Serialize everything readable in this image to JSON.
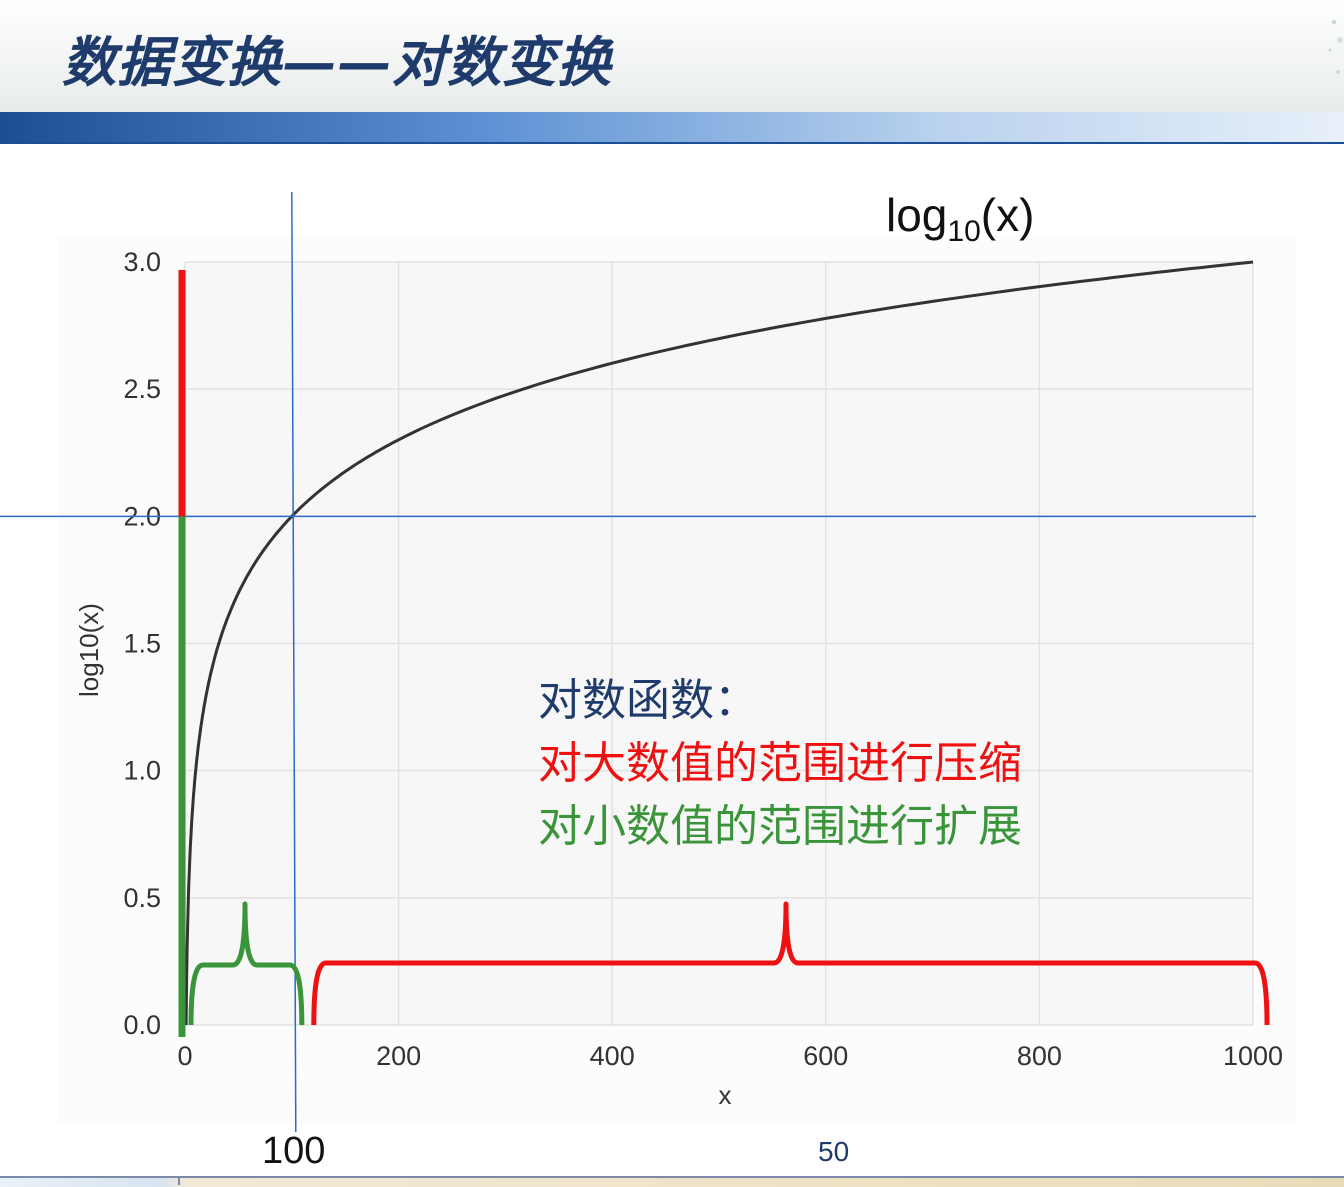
{
  "slide": {
    "title": "数据变换——对数变换",
    "function_label": {
      "base": "log",
      "subscript": "10",
      "arg": "(x)"
    },
    "annotation_title": "对数函数：",
    "annotation_compress": "对大数值的范围进行压缩",
    "annotation_expand": "对小数值的范围进行扩展",
    "marker_label": "100",
    "page_number": "50"
  },
  "colors": {
    "title": "#1f3b6b",
    "compress_red": "#ee1111",
    "expand_green": "#3a943a",
    "guide_blue": "#2a6ac8",
    "curve": "#333333"
  },
  "chart_data": {
    "type": "line",
    "xlabel": "x",
    "ylabel": "log10(x)",
    "xlim": [
      0,
      1000
    ],
    "ylim": [
      0,
      3.0
    ],
    "x_ticks": [
      0,
      200,
      400,
      600,
      800,
      1000
    ],
    "y_ticks": [
      0.0,
      0.5,
      1.0,
      1.5,
      2.0,
      2.5,
      3.0
    ],
    "x_tick_labels": [
      "0",
      "200",
      "400",
      "600",
      "800",
      "1000"
    ],
    "y_tick_labels": [
      "0.0",
      "0.5",
      "1.0",
      "1.5",
      "2.0",
      "2.5",
      "3.0"
    ],
    "grid": true,
    "series": [
      {
        "x": [
          1,
          2,
          3,
          5,
          8,
          10,
          15,
          20,
          30,
          50,
          75,
          100,
          150,
          200,
          300,
          400,
          500,
          600,
          700,
          800,
          900,
          1000
        ],
        "y": [
          0.0,
          0.301,
          0.477,
          0.699,
          0.903,
          1.0,
          1.176,
          1.301,
          1.477,
          1.699,
          1.875,
          2.0,
          2.176,
          2.301,
          2.477,
          2.602,
          2.699,
          2.778,
          2.845,
          2.903,
          2.954,
          3.0
        ]
      }
    ],
    "guides": {
      "x": 100,
      "y": 2.0
    },
    "segments": {
      "x_expand": [
        0,
        100
      ],
      "x_compress": [
        100,
        1000
      ],
      "y_expand": [
        0,
        2.0
      ],
      "y_compress": [
        2.0,
        3.0
      ]
    }
  }
}
